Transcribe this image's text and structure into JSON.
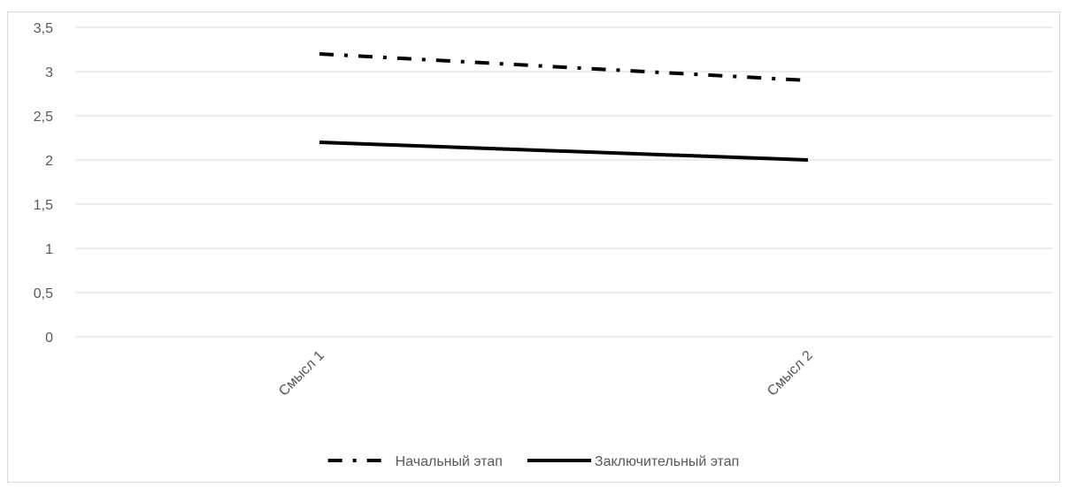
{
  "chart_data": {
    "type": "line",
    "title": "",
    "xlabel": "",
    "ylabel": "",
    "categories": [
      "Смысл 1",
      "Смысл 2"
    ],
    "ylim": [
      0,
      3.5
    ],
    "y_ticks": [
      "0",
      "0,5",
      "1",
      "1,5",
      "2",
      "2,5",
      "3",
      "3,5"
    ],
    "grid": true,
    "legend_position": "bottom",
    "series": [
      {
        "name": "Начальный этап",
        "values": [
          3.2,
          2.9
        ],
        "color": "#000000",
        "line_style": "dash-dot"
      },
      {
        "name": "Заключительный этап",
        "values": [
          2.2,
          2.0
        ],
        "color": "#000000",
        "line_style": "solid"
      }
    ]
  },
  "colors": {
    "gridline": "#d9d9d9",
    "axis_text": "#595959",
    "series_line": "#000000"
  }
}
